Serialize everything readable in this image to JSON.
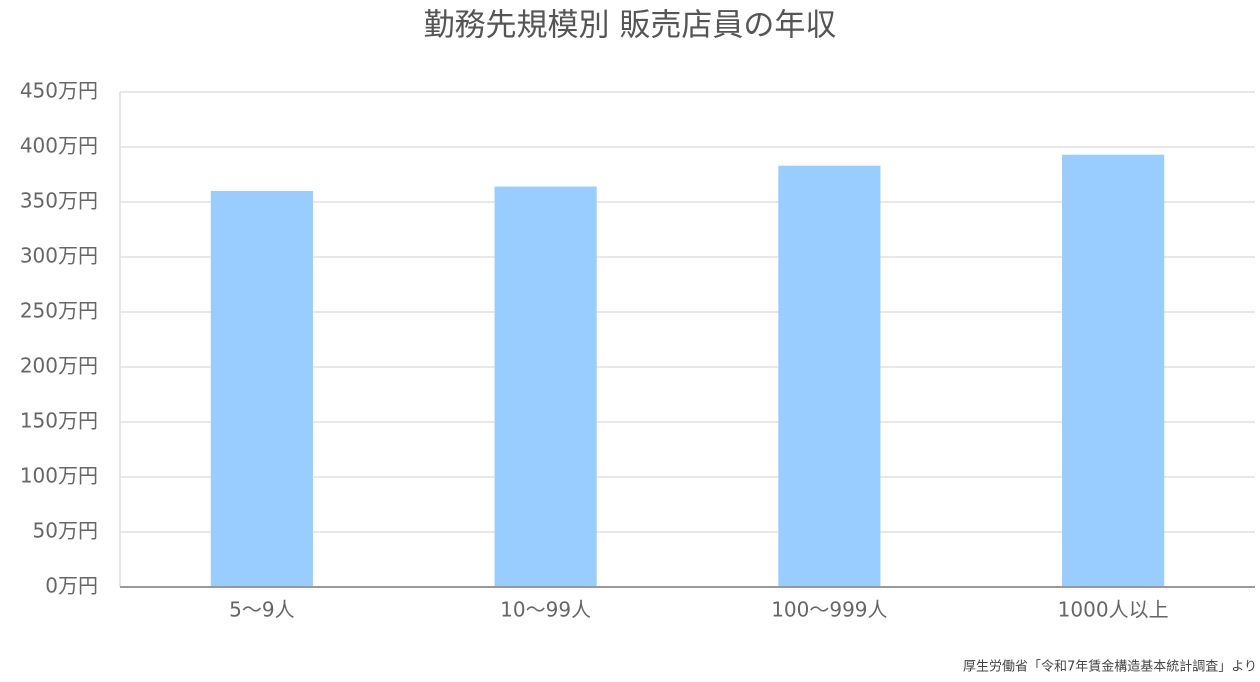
{
  "chart_data": {
    "type": "bar",
    "title": "勤務先規模別 販売店員の年収",
    "categories": [
      "5〜9人",
      "10〜99人",
      "100〜999人",
      "1000人以上"
    ],
    "values": [
      360,
      364,
      383,
      393
    ],
    "color": "#99ccff",
    "ylim": [
      0,
      450
    ],
    "yticks": [
      {
        "value": 0,
        "label": "0万円"
      },
      {
        "value": 50,
        "label": "50万円"
      },
      {
        "value": 100,
        "label": "100万円"
      },
      {
        "value": 150,
        "label": "150万円"
      },
      {
        "value": 200,
        "label": "200万円"
      },
      {
        "value": 250,
        "label": "250万円"
      },
      {
        "value": 300,
        "label": "300万円"
      },
      {
        "value": 350,
        "label": "350万円"
      },
      {
        "value": 400,
        "label": "400万円"
      },
      {
        "value": 450,
        "label": "450万円"
      }
    ],
    "grid": true,
    "source": "厚生労働省「令和7年賃金構造基本統計調査」より"
  }
}
